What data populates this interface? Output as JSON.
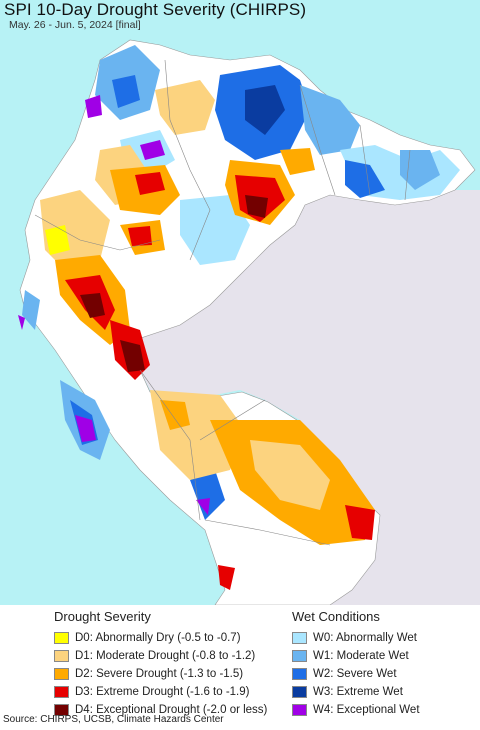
{
  "header": {
    "title": "SPI 10-Day Drought Severity (CHIRPS)",
    "subtitle": "May. 26 - Jun. 5, 2024 [final]"
  },
  "map": {
    "ocean_color": "#b7f2f5",
    "land_color": "#ffffff",
    "outside_color": "#e6e3ec"
  },
  "legend": {
    "drought": {
      "heading": "Drought Severity",
      "items": [
        {
          "label": "D0: Abnormally Dry (-0.5 to -0.7)",
          "color": "#ffff00"
        },
        {
          "label": "D1: Moderate Drought (-0.8 to -1.2)",
          "color": "#fcd37f"
        },
        {
          "label": "D2: Severe Drought (-1.3 to -1.5)",
          "color": "#ffaa00"
        },
        {
          "label": "D3: Extreme Drought (-1.6 to -1.9)",
          "color": "#e60000"
        },
        {
          "label": "D4: Exceptional Drought (-2.0 or less)",
          "color": "#730000"
        }
      ]
    },
    "wet": {
      "heading": "Wet Conditions",
      "items": [
        {
          "label": "W0: Abnormally Wet",
          "color": "#aae6ff"
        },
        {
          "label": "W1: Moderate Wet",
          "color": "#6ab4f0"
        },
        {
          "label": "W2: Severe Wet",
          "color": "#1e6ee6"
        },
        {
          "label": "W3: Extreme Wet",
          "color": "#0a3ca0"
        },
        {
          "label": "W4: Exceptional Wet",
          "color": "#a000e6"
        }
      ]
    }
  },
  "footer": {
    "source": "Source: CHIRPS, UCSB, Climate Hazards Center"
  }
}
